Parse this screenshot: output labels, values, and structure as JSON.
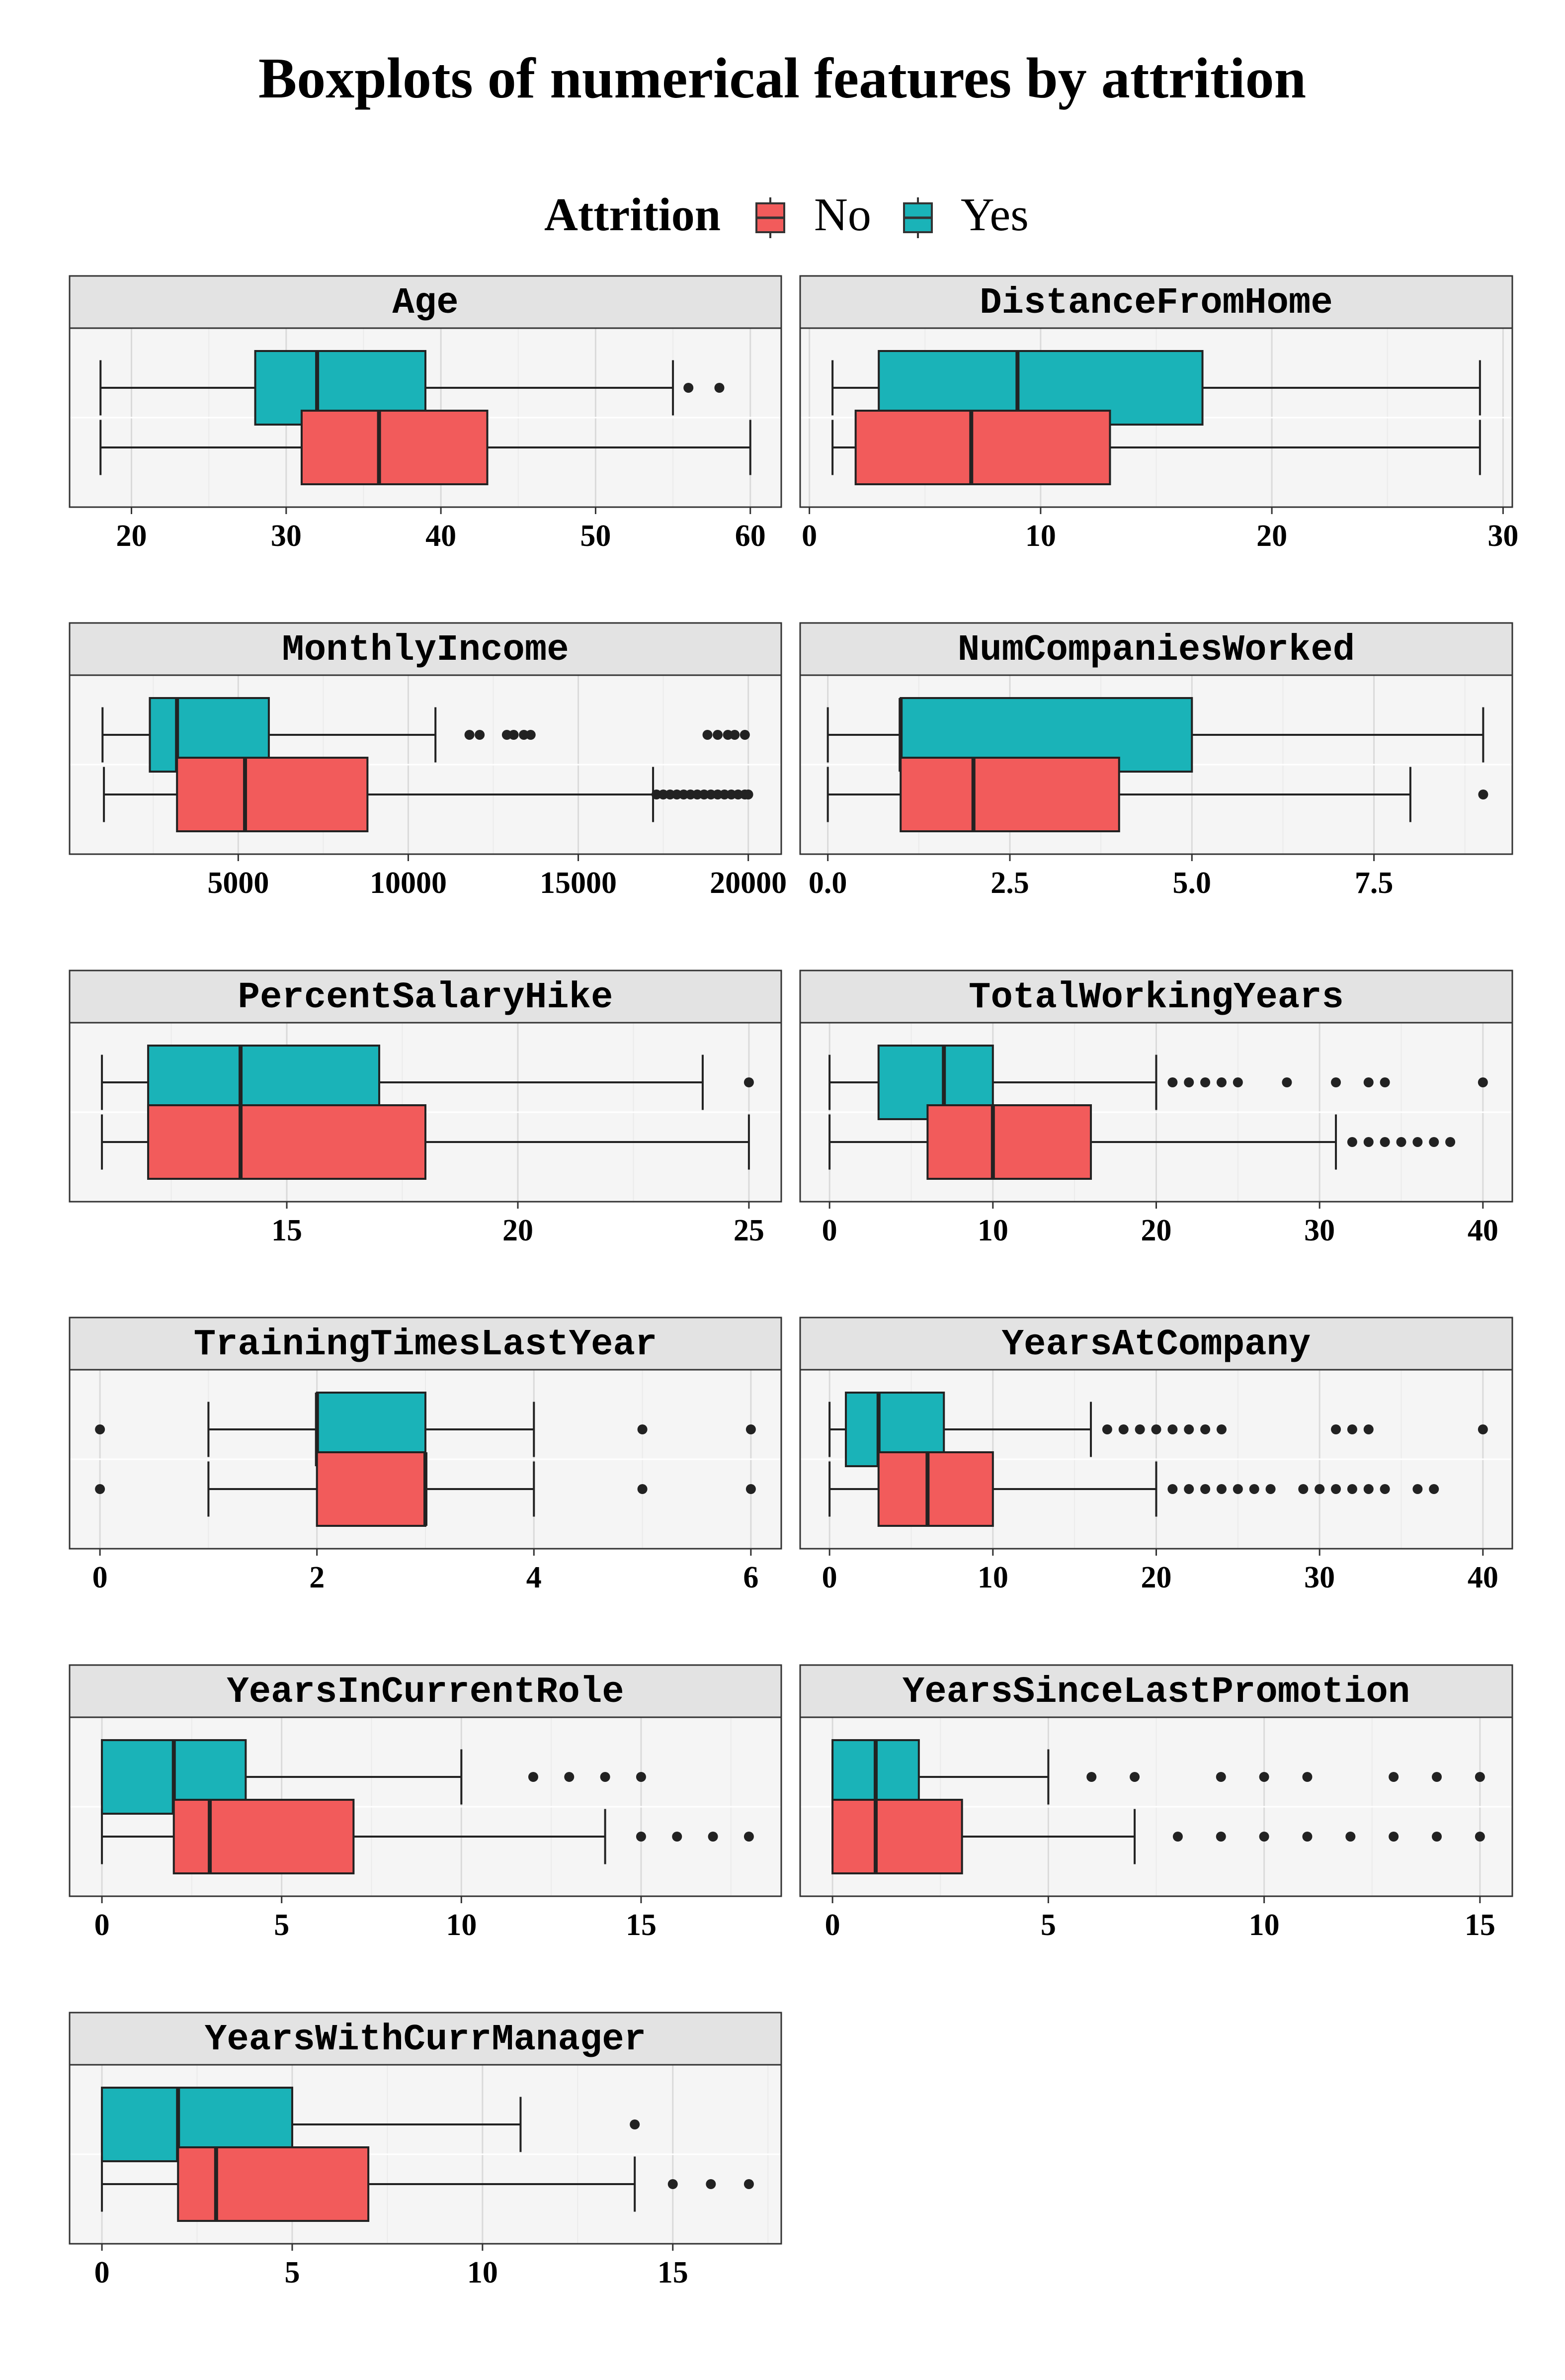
{
  "chart_data": {
    "type": "boxplot",
    "title": "Boxplots of numerical features by attrition",
    "legend": {
      "title": "Attrition",
      "position": "top",
      "entries": [
        {
          "label": "No",
          "color": "#F25B5B"
        },
        {
          "label": "Yes",
          "color": "#1AB3B8"
        }
      ]
    },
    "colors": {
      "No": "#F25B5B",
      "Yes": "#1AB3B8",
      "panel_bg": "#F5F5F5",
      "strip_bg": "#E3E3E3",
      "grid": "#DADADA"
    },
    "grid": true,
    "panels": [
      {
        "name": "Age",
        "xlim": [
          16,
          62
        ],
        "ticks": [
          20,
          30,
          40,
          50,
          60
        ],
        "tick_labels": [
          "20",
          "30",
          "40",
          "50",
          "60"
        ],
        "Yes": {
          "min": 18,
          "q1": 28,
          "median": 32,
          "q3": 39,
          "max": 55,
          "outliers": [
            56,
            58
          ]
        },
        "No": {
          "min": 18,
          "q1": 31,
          "median": 36,
          "q3": 43,
          "max": 60,
          "outliers": []
        }
      },
      {
        "name": "DistanceFromHome",
        "xlim": [
          -0.4,
          30.4
        ],
        "ticks": [
          0,
          10,
          20,
          30
        ],
        "tick_labels": [
          "0",
          "10",
          "20",
          "30"
        ],
        "Yes": {
          "min": 1,
          "q1": 3,
          "median": 9,
          "q3": 17,
          "max": 29,
          "outliers": []
        },
        "No": {
          "min": 1,
          "q1": 2,
          "median": 7,
          "q3": 13,
          "max": 29,
          "outliers": []
        }
      },
      {
        "name": "MonthlyIncome",
        "xlim": [
          40,
          20970
        ],
        "ticks": [
          5000,
          10000,
          15000,
          20000
        ],
        "tick_labels": [
          "5000",
          "10000",
          "15000",
          "20000"
        ],
        "Yes": {
          "min": 1009,
          "q1": 2400,
          "median": 3200,
          "q3": 5900,
          "max": 10800,
          "outliers": [
            11800,
            12100,
            12900,
            13100,
            13400,
            13600,
            18800,
            19100,
            19400,
            19600,
            19900
          ]
        },
        "No": {
          "min": 1050,
          "q1": 3200,
          "median": 5200,
          "q3": 8800,
          "max": 17200,
          "outliers": [
            17300,
            17500,
            17700,
            17900,
            18100,
            18300,
            18500,
            18700,
            18900,
            19100,
            19300,
            19500,
            19700,
            19900,
            19999
          ]
        }
      },
      {
        "name": "NumCompaniesWorked",
        "xlim": [
          -0.38,
          9.4
        ],
        "ticks": [
          0,
          2.5,
          5,
          7.5
        ],
        "tick_labels": [
          "0.0",
          "2.5",
          "5.0",
          "7.5"
        ],
        "Yes": {
          "min": 0,
          "q1": 1,
          "median": 1,
          "q3": 5,
          "max": 9,
          "outliers": []
        },
        "No": {
          "min": 0,
          "q1": 1,
          "median": 2,
          "q3": 4,
          "max": 8,
          "outliers": [
            9
          ]
        }
      },
      {
        "name": "PercentSalaryHike",
        "xlim": [
          10.3,
          25.7
        ],
        "ticks": [
          15,
          20,
          25
        ],
        "tick_labels": [
          "15",
          "20",
          "25"
        ],
        "Yes": {
          "min": 11,
          "q1": 12,
          "median": 14,
          "q3": 17,
          "max": 24,
          "outliers": [
            25
          ]
        },
        "No": {
          "min": 11,
          "q1": 12,
          "median": 14,
          "q3": 18,
          "max": 25,
          "outliers": []
        }
      },
      {
        "name": "TotalWorkingYears",
        "xlim": [
          -1.8,
          41.8
        ],
        "ticks": [
          0,
          10,
          20,
          30,
          40
        ],
        "tick_labels": [
          "0",
          "10",
          "20",
          "30",
          "40"
        ],
        "Yes": {
          "min": 0,
          "q1": 3,
          "median": 7,
          "q3": 10,
          "max": 20,
          "outliers": [
            21,
            22,
            23,
            24,
            25,
            28,
            31,
            33,
            34,
            40
          ]
        },
        "No": {
          "min": 0,
          "q1": 6,
          "median": 10,
          "q3": 16,
          "max": 31,
          "outliers": [
            32,
            33,
            34,
            35,
            36,
            37,
            38
          ]
        }
      },
      {
        "name": "TrainingTimesLastYear",
        "xlim": [
          -0.28,
          6.28
        ],
        "ticks": [
          0,
          2,
          4,
          6
        ],
        "tick_labels": [
          "0",
          "2",
          "4",
          "6"
        ],
        "Yes": {
          "min": 1,
          "q1": 2,
          "median": 2,
          "q3": 3,
          "max": 4,
          "outliers": [
            0,
            5,
            6
          ]
        },
        "No": {
          "min": 1,
          "q1": 2,
          "median": 3,
          "q3": 3,
          "max": 4,
          "outliers": [
            0,
            5,
            6
          ]
        }
      },
      {
        "name": "YearsAtCompany",
        "xlim": [
          -1.8,
          41.8
        ],
        "ticks": [
          0,
          10,
          20,
          30,
          40
        ],
        "tick_labels": [
          "0",
          "10",
          "20",
          "30",
          "40"
        ],
        "Yes": {
          "min": 0,
          "q1": 1,
          "median": 3,
          "q3": 7,
          "max": 16,
          "outliers": [
            17,
            18,
            19,
            20,
            21,
            22,
            23,
            24,
            31,
            32,
            33,
            40
          ]
        },
        "No": {
          "min": 0,
          "q1": 3,
          "median": 6,
          "q3": 10,
          "max": 20,
          "outliers": [
            21,
            22,
            23,
            24,
            25,
            26,
            27,
            29,
            30,
            31,
            32,
            33,
            34,
            36,
            37
          ]
        }
      },
      {
        "name": "YearsInCurrentRole",
        "xlim": [
          -0.9,
          18.9
        ],
        "ticks": [
          0,
          5,
          10,
          15
        ],
        "tick_labels": [
          "0",
          "5",
          "10",
          "15"
        ],
        "Yes": {
          "min": 0,
          "q1": 0,
          "median": 2,
          "q3": 4,
          "max": 10,
          "outliers": [
            12,
            13,
            14,
            15
          ]
        },
        "No": {
          "min": 0,
          "q1": 2,
          "median": 3,
          "q3": 7,
          "max": 14,
          "outliers": [
            15,
            16,
            17,
            18
          ]
        }
      },
      {
        "name": "YearsSinceLastPromotion",
        "xlim": [
          -0.75,
          15.75
        ],
        "ticks": [
          0,
          5,
          10,
          15
        ],
        "tick_labels": [
          "0",
          "5",
          "10",
          "15"
        ],
        "Yes": {
          "min": 0,
          "q1": 0,
          "median": 1,
          "q3": 2,
          "max": 5,
          "outliers": [
            6,
            7,
            9,
            10,
            11,
            13,
            14,
            15
          ]
        },
        "No": {
          "min": 0,
          "q1": 0,
          "median": 1,
          "q3": 3,
          "max": 7,
          "outliers": [
            8,
            9,
            10,
            11,
            12,
            13,
            14,
            15
          ]
        }
      },
      {
        "name": "YearsWithCurrManager",
        "xlim": [
          -0.85,
          17.85
        ],
        "ticks": [
          0,
          5,
          10,
          15
        ],
        "tick_labels": [
          "0",
          "5",
          "10",
          "15"
        ],
        "Yes": {
          "min": 0,
          "q1": 0,
          "median": 2,
          "q3": 5,
          "max": 11,
          "outliers": [
            14
          ]
        },
        "No": {
          "min": 0,
          "q1": 2,
          "median": 3,
          "q3": 7,
          "max": 14,
          "outliers": [
            15,
            16,
            17
          ]
        }
      }
    ]
  }
}
